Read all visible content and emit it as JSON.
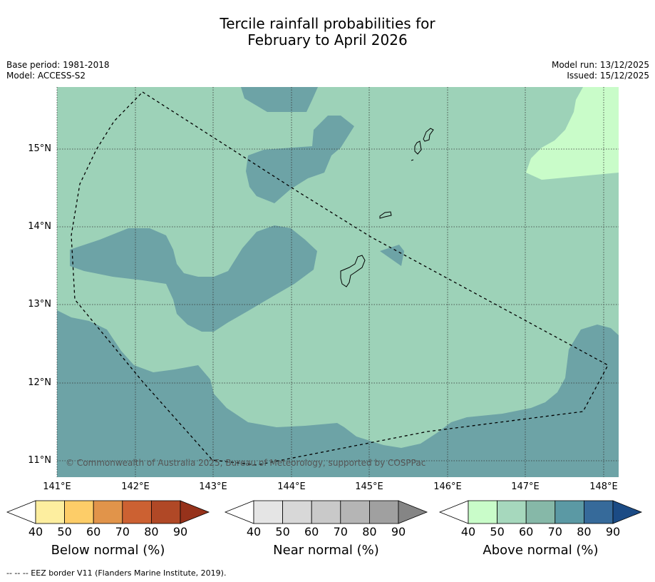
{
  "title_line1": "Tercile rainfall probabilities for",
  "title_line2": "February to April 2026",
  "meta_left": [
    "Base period: 1981-2018",
    "Model: ACCESS-S2"
  ],
  "meta_right": [
    "Model run: 13/12/2025",
    "Issued: 15/12/2025"
  ],
  "map": {
    "lat_labels": [
      "15°N",
      "14°N",
      "13°N",
      "12°N",
      "11°N"
    ],
    "lon_labels": [
      "141°E",
      "142°E",
      "143°E",
      "144°E",
      "145°E",
      "146°E",
      "147°E",
      "148°E"
    ],
    "copyright": "© Commonwealth of Australia 2025, Bureau of Meteorology, supported by COSPPac",
    "colors": {
      "above_40_50": "#c9fcc9",
      "above_50_60": "#9dd2b8",
      "above_60_70": "#88b8a8",
      "dark_region": "#6da3a6"
    }
  },
  "colorbars": [
    {
      "label": "Below normal (%)",
      "ticks": [
        "40",
        "50",
        "60",
        "70",
        "80",
        "90"
      ],
      "colors": [
        "#ffffff",
        "#fdee9f",
        "#fdcd68",
        "#e1944a",
        "#cc6132",
        "#b04826",
        "#96321b"
      ]
    },
    {
      "label": "Near normal (%)",
      "ticks": [
        "40",
        "50",
        "60",
        "70",
        "80",
        "90"
      ],
      "colors": [
        "#ffffff",
        "#e5e5e5",
        "#d8d8d8",
        "#c9c9c9",
        "#b5b5b5",
        "#a0a0a0",
        "#858585"
      ]
    },
    {
      "label": "Above normal (%)",
      "ticks": [
        "40",
        "50",
        "60",
        "70",
        "80",
        "90"
      ],
      "colors": [
        "#ffffff",
        "#c9fcc9",
        "#a6d8bd",
        "#86b8a8",
        "#5b99a4",
        "#366a9a",
        "#1b4b85"
      ]
    }
  ],
  "footnote": "--  --  -- EEZ border V11 (Flanders Marine Institute, 2019)."
}
